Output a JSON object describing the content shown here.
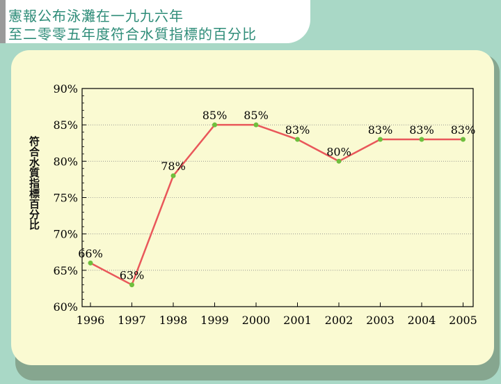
{
  "header": {
    "title_line1": "憲報公布泳灘在一九九六年",
    "title_line2": "至二零零五年度符合水質指標的百分比"
  },
  "colors": {
    "background": "#a9d8c6",
    "panel": "#fafad2",
    "title_text": "#2e8c78",
    "line": "#e9575a",
    "marker": "#6fbf3d"
  },
  "chart_data": {
    "type": "line",
    "title": "",
    "xlabel": "",
    "ylabel": "符合水質指標百分比",
    "x": [
      "1996",
      "1997",
      "1998",
      "1999",
      "2000",
      "2001",
      "2002",
      "2003",
      "2004",
      "2005"
    ],
    "series": [
      {
        "values": [
          66,
          63,
          78,
          85,
          85,
          83,
          80,
          83,
          83,
          83
        ],
        "labels": [
          "66%",
          "63%",
          "78%",
          "85%",
          "85%",
          "83%",
          "80%",
          "83%",
          "83%",
          "83%"
        ]
      }
    ],
    "ylim": [
      60,
      90
    ],
    "yticks": [
      60,
      65,
      70,
      75,
      80,
      85,
      90
    ],
    "ytick_labels": [
      "60%",
      "65%",
      "70%",
      "75%",
      "80%",
      "85%",
      "90%"
    ],
    "grid": "horizontal dotted",
    "legend": "none"
  }
}
